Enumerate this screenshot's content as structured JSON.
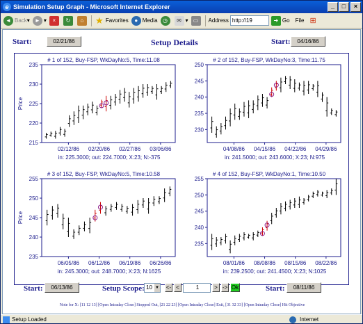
{
  "window": {
    "title": "Simulation Setup Graph - Microsoft Internet Explorer"
  },
  "toolbar": {
    "back": "Back",
    "favorites": "Favorites",
    "media": "Media",
    "address_label": "Address",
    "address_value": "http://19",
    "go": "Go",
    "file": "File"
  },
  "header": {
    "start_label": "Start:",
    "start_date": "02/21/86",
    "title": "Setup Details",
    "start2_label": "Start:",
    "start2_date": "04/16/86"
  },
  "ylabel": "Price",
  "charts": [
    {
      "title": "# 1 of 152, Buy-FSP, WkDayNo:5, Time:11.08",
      "footer": "in: 225.3000;  out: 224.7000;  X:23;  N:-375",
      "x_ticks": [
        "02/12/86",
        "02/20/86",
        "02/27/86",
        "03/06/86"
      ],
      "y_ticks": [
        "215",
        "220",
        "225",
        "230",
        "235"
      ],
      "ylim": [
        215,
        235
      ],
      "bars": [
        [
          216,
          217.5
        ],
        [
          216.5,
          217.8
        ],
        [
          216,
          218
        ],
        [
          216.8,
          219
        ],
        [
          216.5,
          218.5
        ],
        [
          219,
          222
        ],
        [
          219.5,
          223
        ],
        [
          220,
          224.5
        ],
        [
          221,
          224.5
        ],
        [
          222,
          225
        ],
        [
          222.5,
          225.5
        ],
        [
          222,
          224.5
        ],
        [
          224,
          226
        ],
        [
          223,
          227
        ],
        [
          223.5,
          227
        ],
        [
          224.5,
          227.5
        ],
        [
          225,
          228.5
        ],
        [
          225.5,
          229
        ],
        [
          224,
          228
        ],
        [
          225,
          229
        ],
        [
          225.5,
          229.5
        ],
        [
          226.5,
          230
        ],
        [
          227,
          230
        ],
        [
          227.5,
          229.5
        ],
        [
          226,
          230
        ],
        [
          227.5,
          229.5
        ],
        [
          228,
          230.5
        ],
        [
          229,
          230.8
        ]
      ],
      "marks": [
        12,
        13
      ]
    },
    {
      "title": "# 2 of 152, Buy-FSP, WkDayNo:3, Time:11.75",
      "footer": "in: 241.5000;  out: 243.6000;  X:23;  N:975",
      "x_ticks": [
        "04/08/86",
        "04/15/86",
        "04/22/86",
        "04/29/86"
      ],
      "y_ticks": [
        "230",
        "235",
        "240",
        "245",
        "250"
      ],
      "ylim": [
        226,
        250
      ],
      "bars": [
        [
          229,
          234
        ],
        [
          227.5,
          231
        ],
        [
          228.5,
          232
        ],
        [
          230,
          234
        ],
        [
          231,
          236.5
        ],
        [
          233,
          238
        ],
        [
          233,
          236.5
        ],
        [
          234,
          238.5
        ],
        [
          233.5,
          239
        ],
        [
          235,
          239
        ],
        [
          236,
          240.5
        ],
        [
          237,
          241
        ],
        [
          236.5,
          240
        ],
        [
          240,
          243
        ],
        [
          242,
          245
        ],
        [
          241.5,
          246
        ],
        [
          244,
          246.5
        ],
        [
          242.5,
          246.5
        ],
        [
          241.5,
          245.5
        ],
        [
          242,
          244.5
        ],
        [
          240.5,
          245
        ],
        [
          241,
          245
        ],
        [
          242,
          244
        ],
        [
          240,
          245
        ],
        [
          238.5,
          241.5
        ],
        [
          234,
          240
        ],
        [
          234.5,
          236.5
        ],
        [
          234,
          236
        ]
      ],
      "marks": [
        13,
        14
      ]
    },
    {
      "title": "# 3 of 152, Buy-FSP, WkDayNo:5, Time:10.58",
      "footer": "in: 245.3000;  out: 248.7000;  X:23;  N:1625",
      "x_ticks": [
        "06/05/86",
        "06/12/86",
        "06/19/86",
        "06/26/86"
      ],
      "y_ticks": [
        "235",
        "240",
        "245",
        "250",
        "255"
      ],
      "ylim": [
        235,
        255
      ],
      "bars": [
        [
          243,
          247
        ],
        [
          244.5,
          248
        ],
        [
          245,
          248.5
        ],
        [
          242,
          246
        ],
        [
          240,
          245
        ],
        [
          239.5,
          242
        ],
        [
          240.5,
          243
        ],
        [
          241.5,
          244
        ],
        [
          241,
          245
        ],
        [
          244,
          247
        ],
        [
          246,
          249
        ],
        [
          245.5,
          248
        ],
        [
          246.5,
          248.5
        ],
        [
          247,
          249
        ],
        [
          246.5,
          248.5
        ],
        [
          246,
          248
        ],
        [
          245.5,
          248.5
        ],
        [
          246,
          249.5
        ],
        [
          247.5,
          250
        ],
        [
          246,
          250
        ],
        [
          248,
          250.5
        ],
        [
          248.5,
          250.5
        ],
        [
          249,
          252.5
        ],
        [
          250.5,
          253
        ]
      ],
      "marks": [
        9,
        10
      ]
    },
    {
      "title": "# 4 of 152, Buy-FSP, WkDayNo:1, Time:10.50",
      "footer": "in: 239.2500;  out: 241.4500;  X:23;  N:1025",
      "x_ticks": [
        "08/01/86",
        "08/08/86",
        "08/15/86",
        "08/22/86"
      ],
      "y_ticks": [
        "235",
        "240",
        "245",
        "250",
        "255"
      ],
      "ylim": [
        231,
        255
      ],
      "bars": [
        [
          233,
          238
        ],
        [
          234,
          237
        ],
        [
          234.5,
          237
        ],
        [
          235,
          238
        ],
        [
          232,
          236
        ],
        [
          234.5,
          237.5
        ],
        [
          235.5,
          238
        ],
        [
          236,
          238.5
        ],
        [
          236.5,
          238
        ],
        [
          236,
          238.5
        ],
        [
          237,
          239
        ],
        [
          237.5,
          240
        ],
        [
          239,
          242
        ],
        [
          241,
          244.5
        ],
        [
          243,
          246
        ],
        [
          244,
          247.5
        ],
        [
          245,
          248
        ],
        [
          245.5,
          248.5
        ],
        [
          246,
          249
        ],
        [
          246,
          249.5
        ],
        [
          247,
          249
        ],
        [
          248,
          250
        ],
        [
          249,
          251
        ],
        [
          249.5,
          251.5
        ],
        [
          249.5,
          251
        ],
        [
          249,
          251.5
        ],
        [
          250,
          252
        ],
        [
          250,
          255
        ]
      ],
      "marks": [
        11,
        12
      ]
    }
  ],
  "bottom": {
    "start3_label": "Start:",
    "start3_date": "06/13/86",
    "scope_label": "Setup Scope:",
    "scope_value": "10",
    "page": "1",
    "ok": "Ok",
    "start4_label": "Start:",
    "start4_date": "08/11/86"
  },
  "note": "Note for X: [11  12  13] [Open Intraday Close] Stopped Out,  [21  22  23] [Open Intraday Close] Exit,  [31  32  33] [Open Intraday Close] Hit Objective",
  "status": {
    "left": "Setup Loaded",
    "zone": "Internet"
  },
  "colors": {
    "accent": "#1c1c8c",
    "entry": "#cc0000"
  }
}
